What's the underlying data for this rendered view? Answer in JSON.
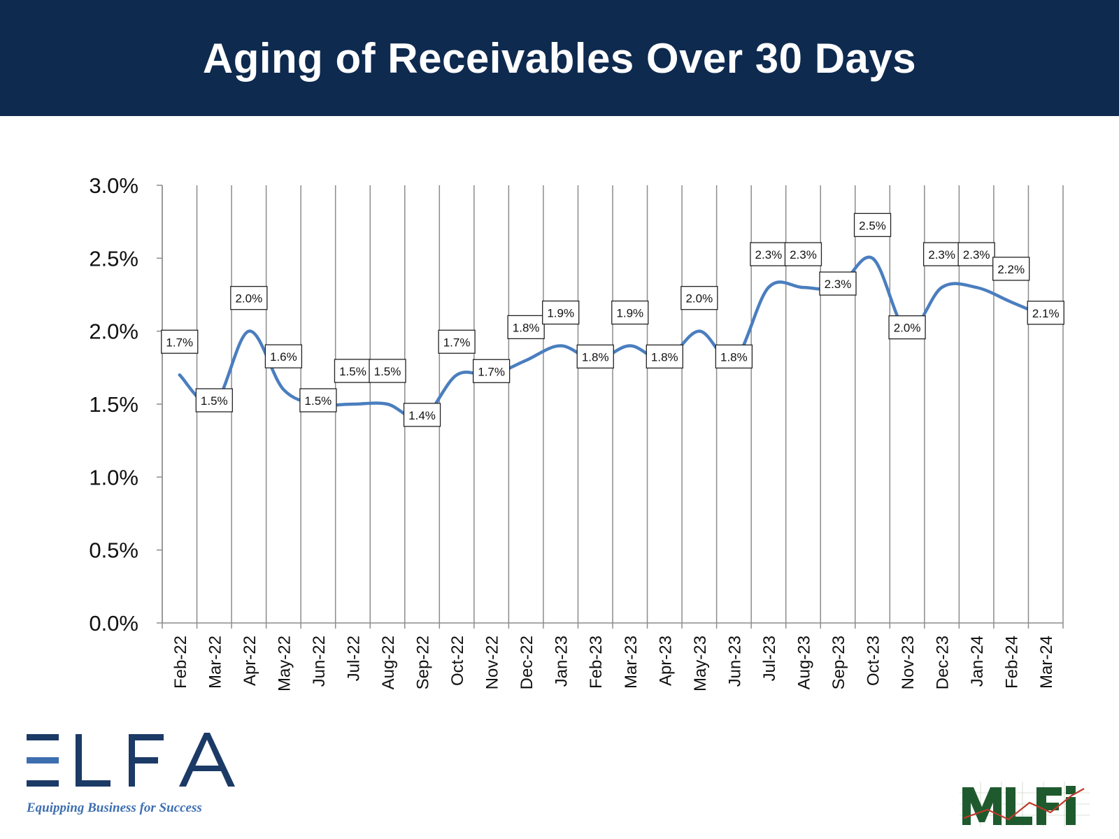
{
  "header": {
    "title": "Aging of Receivables Over 30 Days"
  },
  "chart_data": {
    "type": "line",
    "title": "Aging of Receivables Over 30 Days",
    "xlabel": "",
    "ylabel": "",
    "categories": [
      "Feb-22",
      "Mar-22",
      "Apr-22",
      "May-22",
      "Jun-22",
      "Jul-22",
      "Aug-22",
      "Sep-22",
      "Oct-22",
      "Nov-22",
      "Dec-22",
      "Jan-23",
      "Feb-23",
      "Mar-23",
      "Apr-23",
      "May-23",
      "Jun-23",
      "Jul-23",
      "Aug-23",
      "Sep-23",
      "Oct-23",
      "Nov-23",
      "Dec-23",
      "Jan-24",
      "Feb-24",
      "Mar-24"
    ],
    "series": [
      {
        "values": [
          1.7,
          1.5,
          2.0,
          1.6,
          1.5,
          1.5,
          1.5,
          1.4,
          1.7,
          1.7,
          1.8,
          1.9,
          1.8,
          1.9,
          1.8,
          2.0,
          1.8,
          2.3,
          2.3,
          2.3,
          2.5,
          2.0,
          2.3,
          2.3,
          2.2,
          2.1
        ]
      }
    ],
    "data_labels": [
      "1.7%",
      "1.5%",
      "2.0%",
      "1.6%",
      "1.5%",
      "1.5%",
      "1.5%",
      "1.4%",
      "1.7%",
      "1.7%",
      "1.8%",
      "1.9%",
      "1.8%",
      "1.9%",
      "1.8%",
      "2.0%",
      "1.8%",
      "2.3%",
      "2.3%",
      "2.3%",
      "2.5%",
      "2.0%",
      "2.3%",
      "2.3%",
      "2.2%",
      "2.1%"
    ],
    "y_ticks": [
      "0.0%",
      "0.5%",
      "1.0%",
      "1.5%",
      "2.0%",
      "2.5%",
      "3.0%"
    ],
    "ylim": [
      0,
      3.0
    ],
    "y_unit": "%",
    "grid": "vertical",
    "legend": "none",
    "line_color": "#4a7ebf",
    "smooth": true
  },
  "logos": {
    "elfa_text": "ELFA",
    "elfa_tagline": "Equipping Business for Success",
    "mlfi_text": "MLFi"
  },
  "colors": {
    "header_bg": "#0e2a4f",
    "header_text": "#ffffff",
    "elfa_navy": "#1b3a66",
    "elfa_blue": "#3d6fb0",
    "mlfi_green": "#1f5a2e"
  }
}
